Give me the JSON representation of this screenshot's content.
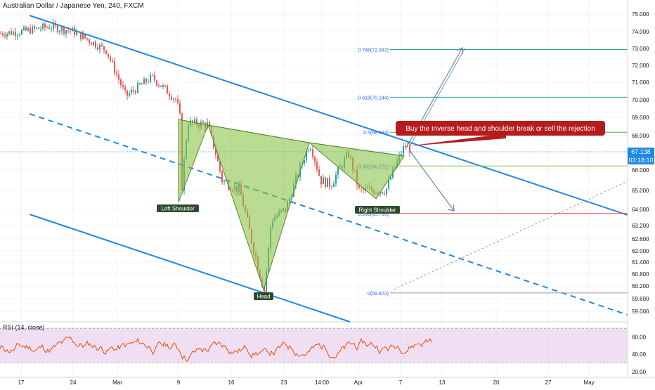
{
  "chart_data": {
    "type": "candlestick",
    "title": "Australian Dollar / Japanese Yen, 240, FXCM",
    "ylim": [
      58.5,
      75.5
    ],
    "y_ticks": [
      "75.000",
      "74.000",
      "73.000",
      "72.000",
      "71.000",
      "70.000",
      "69.000",
      "68.000",
      "67.000",
      "66.000",
      "65.000",
      "64.000",
      "63.200",
      "62.600",
      "62.000",
      "61.400",
      "60.800",
      "60.200",
      "59.600",
      "59.000"
    ],
    "x_ticks": [
      "17",
      "24",
      "Mar",
      "9",
      "16",
      "23",
      "14:00",
      "Apr",
      "7",
      "13",
      "20",
      "27",
      "May"
    ],
    "last_price": "67.138",
    "countdown": "03:18:10",
    "price_path": [
      [
        "17",
        73.9
      ],
      [
        "24",
        74.3
      ],
      [
        "Mar",
        70.0
      ],
      [
        "9",
        68.8
      ],
      [
        "9",
        65.2
      ],
      [
        "9",
        68.7
      ],
      [
        "16",
        65.5
      ],
      [
        "23",
        59.9
      ],
      [
        "23",
        63.5
      ],
      [
        "14:00",
        67.5
      ],
      [
        "14:00",
        65.5
      ],
      [
        "Apr",
        66.9
      ],
      [
        "Apr",
        64.9
      ],
      [
        "7",
        67.6
      ],
      [
        "7",
        67.1
      ]
    ],
    "fibonacci": [
      {
        "label": "0.786(72.937)",
        "value": 72.937
      },
      {
        "label": "0.618(70.144)",
        "value": 70.144
      },
      {
        "label": "0.5(68.183)",
        "value": 68.183
      },
      {
        "label": "0.382(66.221)",
        "value": 66.221
      },
      {
        "label": "0.236(63.799)",
        "value": 63.799
      },
      {
        "label": "0(59.872)",
        "value": 59.872
      }
    ],
    "annotations": [
      "Left Shoulder",
      "Head",
      "Right Shoulder",
      "Buy the Inverse head and shoulder break or sell the rejection"
    ],
    "rsi": {
      "label": "RSI (14, close)",
      "ylim": [
        15,
        75
      ],
      "ticks": [
        "60.00",
        "40.00",
        "20.00"
      ],
      "band": [
        30,
        70
      ]
    }
  },
  "colors": {
    "channel": "#1e88e5",
    "candle_up": "#26a69a",
    "candle_down": "#ef5350",
    "pattern_fill": "#8bc34a",
    "callout": "#b71c1c",
    "rsi_line": "#e65100",
    "rsi_band": "#e1bee7"
  }
}
